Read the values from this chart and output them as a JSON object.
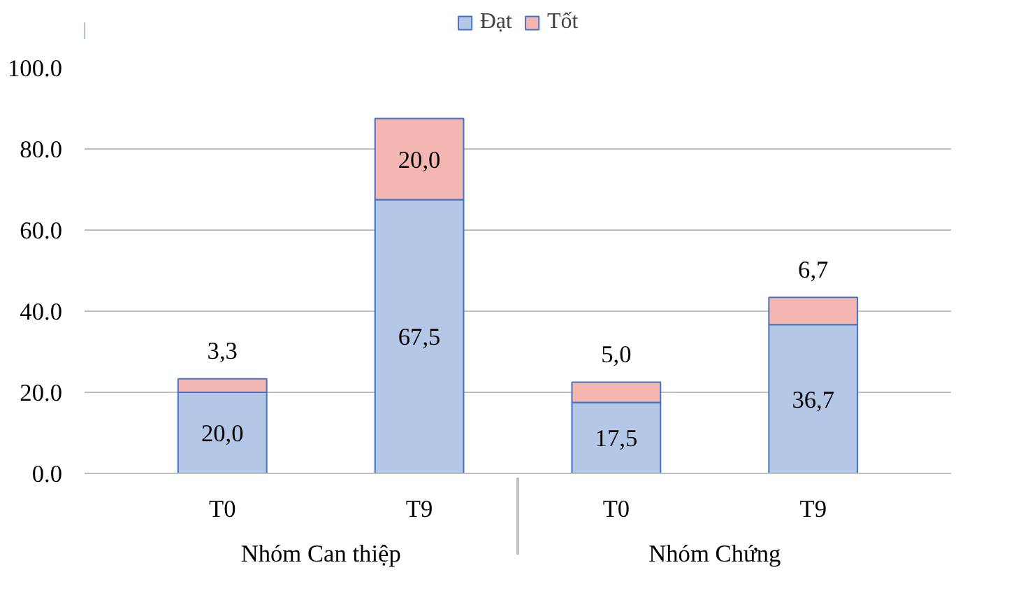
{
  "chart_data": {
    "type": "bar",
    "stacked": true,
    "categories": [
      "T0",
      "T9",
      "T0",
      "T9"
    ],
    "annotations": [
      "Nhóm Can thiệp",
      "Nhóm Chứng"
    ],
    "series": [
      {
        "name": "Đạt",
        "color": "#b4c7e7",
        "values": [
          20.0,
          67.5,
          17.5,
          36.7
        ],
        "value_labels": [
          "20,0",
          "67,5",
          "17,5",
          "36,7"
        ]
      },
      {
        "name": "Tốt",
        "color": "#f4b6b0",
        "values": [
          3.3,
          20.0,
          5.0,
          6.7
        ],
        "value_labels": [
          "3,3",
          "20,0",
          "5,0",
          "6,7"
        ]
      }
    ],
    "ylim": [
      0,
      100
    ],
    "yticks": [
      {
        "value": 0,
        "label": "0.0"
      },
      {
        "value": 20,
        "label": "20.0"
      },
      {
        "value": 40,
        "label": "40.0"
      },
      {
        "value": 60,
        "label": "60.0"
      },
      {
        "value": 80,
        "label": "80.0"
      },
      {
        "value": 100,
        "label": "100.0"
      }
    ],
    "grid": "y",
    "legend": "top"
  }
}
